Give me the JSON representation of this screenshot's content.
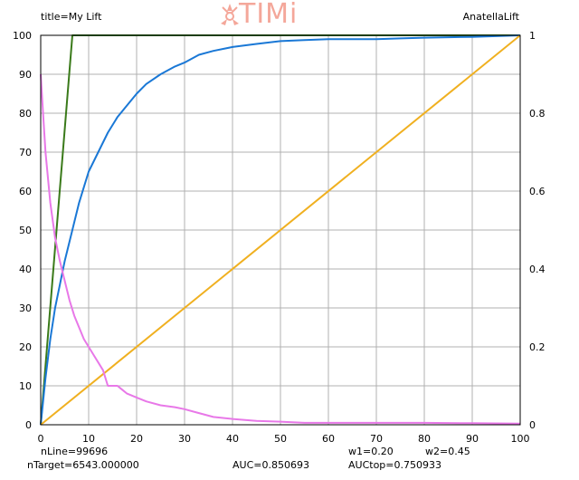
{
  "header": {
    "title_text": "title=My Lift",
    "chart_name": "AnatellaLift",
    "logo_text": "TIMi"
  },
  "footer": {
    "nline": "nLine=99696",
    "ntarget": "nTarget=6543.000000",
    "w1": "w1=0.20",
    "w2": "w2=0.45",
    "auc": "AUC=0.850693",
    "auctop": "AUCtop=0.750933"
  },
  "colors": {
    "grid": "#b0b0b0",
    "frame": "#000000",
    "logo": "#f4a79a"
  },
  "chart_data": {
    "type": "line",
    "xlim": [
      0,
      100
    ],
    "ylim": [
      0,
      100
    ],
    "y2lim": [
      0,
      1
    ],
    "grid": true,
    "x_ticks": [
      0,
      10,
      20,
      30,
      40,
      50,
      60,
      70,
      80,
      90,
      100
    ],
    "y_ticks": [
      0,
      10,
      20,
      30,
      40,
      50,
      60,
      70,
      80,
      90,
      100
    ],
    "y2_ticks": [
      0,
      0.2,
      0.4,
      0.6,
      0.8,
      1
    ],
    "series": [
      {
        "color": "#3a7a1a",
        "axis": "left",
        "x": [
          0,
          6.6,
          100
        ],
        "y": [
          0,
          100,
          100
        ]
      },
      {
        "color": "#1a78d6",
        "axis": "left",
        "x": [
          0,
          1,
          2,
          3,
          4,
          5,
          6,
          7,
          8,
          9,
          10,
          12,
          14,
          16,
          18,
          20,
          22,
          25,
          28,
          30,
          33,
          36,
          40,
          45,
          50,
          55,
          60,
          65,
          70,
          75,
          80,
          85,
          90,
          95,
          100
        ],
        "y": [
          0,
          12,
          22,
          30,
          36,
          42,
          47,
          52,
          57,
          61,
          65,
          70,
          75,
          79,
          82,
          85,
          87.5,
          90,
          92,
          93,
          95,
          96,
          97,
          97.8,
          98.5,
          98.8,
          99,
          99,
          99,
          99.2,
          99.4,
          99.5,
          99.6,
          99.8,
          100
        ]
      },
      {
        "color": "#f0b020",
        "axis": "left",
        "x": [
          0,
          100
        ],
        "y": [
          0,
          100
        ]
      },
      {
        "color": "#e878e8",
        "axis": "left",
        "x": [
          0,
          0.5,
          1,
          2,
          3,
          4,
          5,
          6,
          7,
          8,
          9,
          10,
          11,
          12,
          13,
          14,
          15,
          16,
          17,
          18,
          20,
          22,
          25,
          28,
          30,
          33,
          36,
          40,
          45,
          50,
          55,
          60,
          70,
          80,
          90,
          100
        ],
        "y": [
          90,
          80,
          70,
          57,
          48,
          42,
          37,
          32,
          28,
          25,
          22,
          20,
          18,
          16,
          14,
          10,
          10,
          10,
          9,
          8,
          7,
          6,
          5,
          4.5,
          4,
          3,
          2,
          1.5,
          1,
          0.8,
          0.5,
          0.5,
          0.5,
          0.5,
          0.4,
          0.3
        ]
      }
    ]
  }
}
